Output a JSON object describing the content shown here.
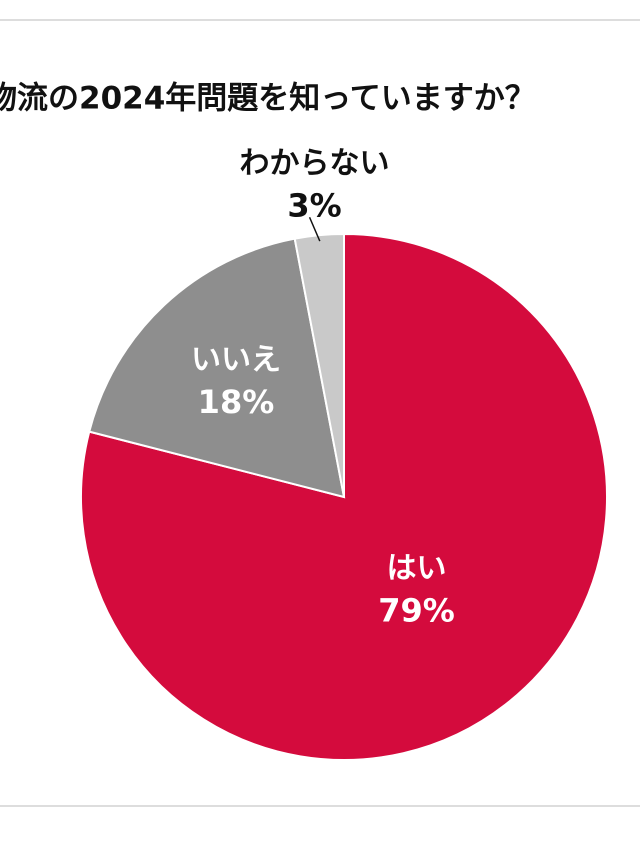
{
  "chart_data": {
    "type": "pie",
    "title": "物流の2024年問題を知っていますか？",
    "categories": [
      "はい",
      "いいえ",
      "わからない"
    ],
    "values": [
      79,
      18,
      3
    ],
    "value_labels": [
      "79%",
      "18%",
      "3%"
    ],
    "colors": [
      "#d40b3d",
      "#8e8e8e",
      "#c9c9c9"
    ]
  }
}
